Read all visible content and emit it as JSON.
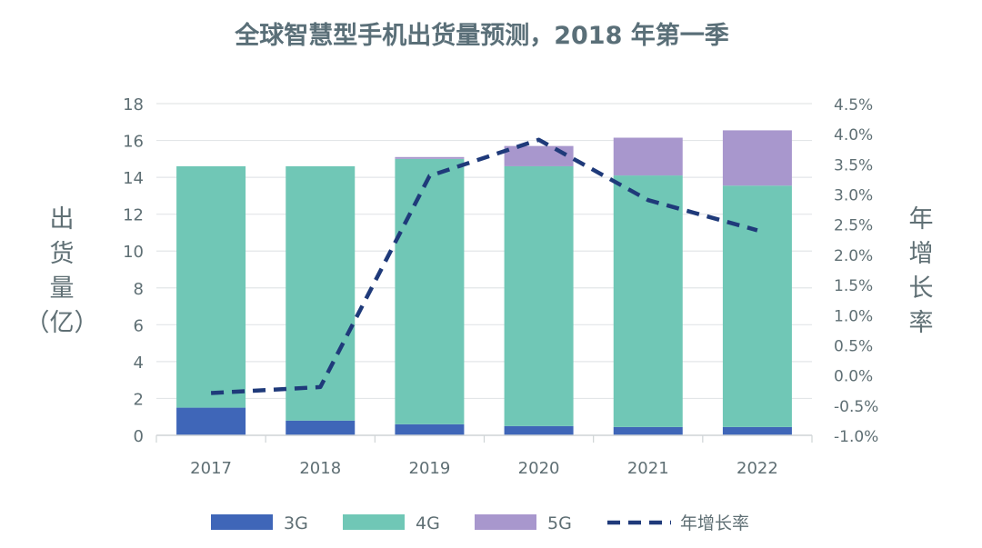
{
  "chart_data": {
    "type": "bar",
    "stacked": true,
    "title": "全球智慧型手机出货量预测，2018 年第一季",
    "categories": [
      "2017",
      "2018",
      "2019",
      "2020",
      "2021",
      "2022"
    ],
    "series": [
      {
        "name": "3G",
        "type": "bar",
        "axis": "left",
        "color": "#3f66b8",
        "values": [
          1.5,
          0.8,
          0.6,
          0.5,
          0.45,
          0.45
        ]
      },
      {
        "name": "4G",
        "type": "bar",
        "axis": "left",
        "color": "#70c7b6",
        "values": [
          13.1,
          13.8,
          14.4,
          14.1,
          13.65,
          13.1
        ]
      },
      {
        "name": "5G",
        "type": "bar",
        "axis": "left",
        "color": "#a897cd",
        "values": [
          0,
          0,
          0.1,
          1.1,
          2.05,
          3.0
        ]
      },
      {
        "name": "年增长率",
        "type": "line",
        "axis": "right",
        "color": "#1f3a7a",
        "style": "dashed",
        "values": [
          -0.3,
          -0.2,
          3.3,
          3.9,
          2.9,
          2.4
        ]
      }
    ],
    "ylabel": "出货量（亿）",
    "y2label": "年增长率",
    "ylim": [
      0,
      18
    ],
    "y2lim": [
      -1.0,
      4.5
    ],
    "yticks": [
      "0",
      "2",
      "4",
      "6",
      "8",
      "10",
      "12",
      "14",
      "16",
      "18"
    ],
    "y2ticks": [
      "-1.0%",
      "-0.5%",
      "0.0%",
      "0.5%",
      "1.0%",
      "1.5%",
      "2.0%",
      "2.5%",
      "3.0%",
      "3.5%",
      "4.0%",
      "4.5%"
    ],
    "grid": true,
    "legend_position": "bottom",
    "colors": {
      "title": "#5a6f78",
      "axis_text": "#5f6f74",
      "grid": "#e3e6e8"
    }
  }
}
